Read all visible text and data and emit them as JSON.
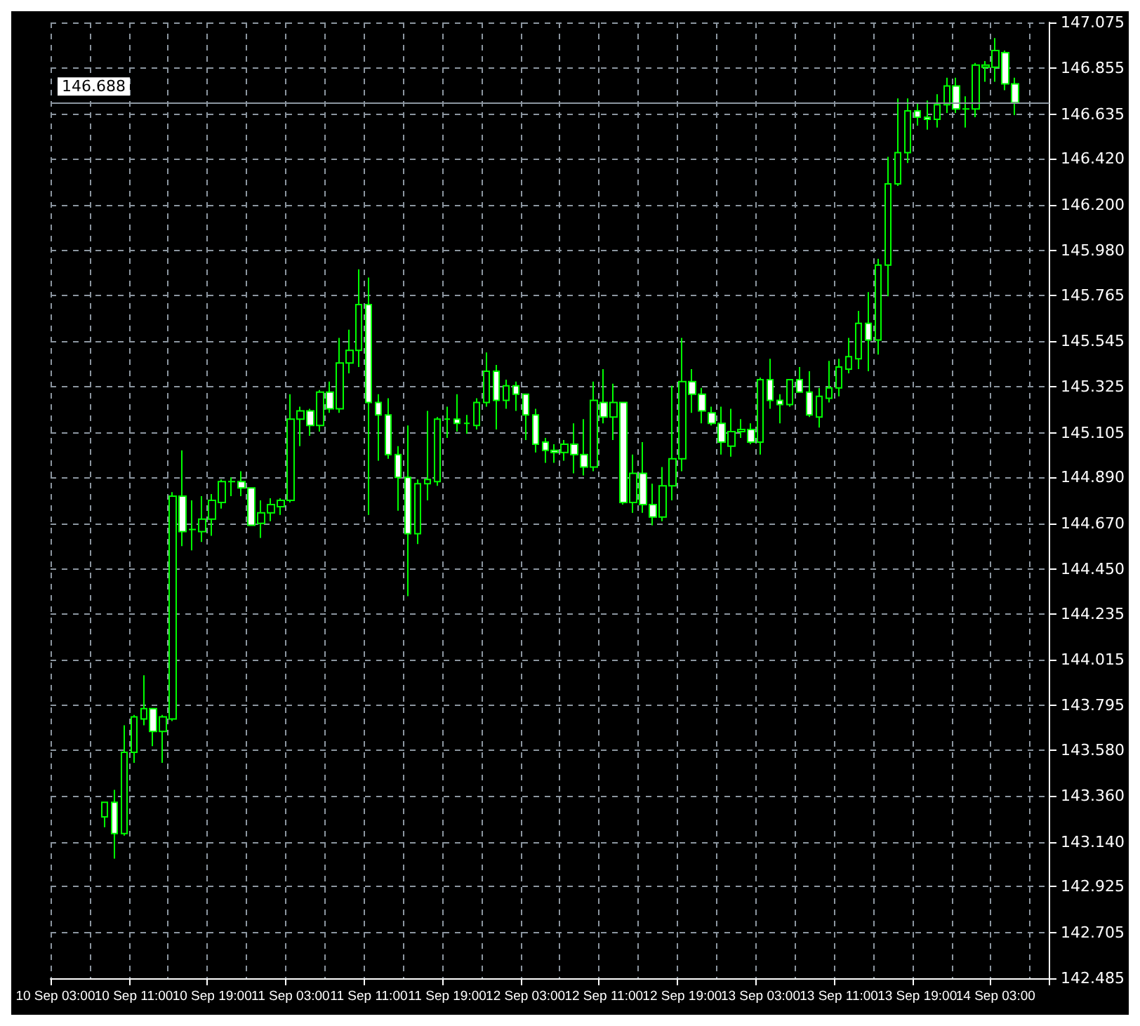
{
  "chart_data": {
    "type": "candlestick",
    "categories": [
      "10 Sep 03:00",
      null,
      null,
      null,
      null,
      null,
      null,
      null,
      "10 Sep 11:00",
      null,
      null,
      null,
      null,
      null,
      null,
      null,
      "10 Sep 19:00",
      null,
      null,
      null,
      null,
      null,
      null,
      null,
      "11 Sep 03:00",
      null,
      null,
      null,
      null,
      null,
      null,
      null,
      "11 Sep 11:00",
      null,
      null,
      null,
      null,
      null,
      null,
      null,
      "11 Sep 19:00",
      null,
      null,
      null,
      null,
      null,
      null,
      null,
      "12 Sep 03:00",
      null,
      null,
      null,
      null,
      null,
      null,
      null,
      "12 Sep 11:00",
      null,
      null,
      null,
      null,
      null,
      null,
      null,
      "12 Sep 19:00",
      null,
      null,
      null,
      null,
      null,
      null,
      null,
      "13 Sep 03:00",
      null,
      null,
      null,
      null,
      null,
      null,
      null,
      "13 Sep 11:00",
      null,
      null,
      null,
      null,
      null,
      null,
      null,
      "13 Sep 19:00",
      null,
      null,
      null,
      null,
      null,
      null,
      null,
      "14 Sep 03:00",
      null,
      null,
      null,
      null,
      null
    ],
    "ohlc": [
      null,
      null,
      null,
      null,
      null,
      [
        143.26,
        143.33,
        143.21,
        143.33
      ],
      [
        143.33,
        143.39,
        143.06,
        143.18
      ],
      [
        143.18,
        143.7,
        143.17,
        143.57
      ],
      [
        143.57,
        143.75,
        143.52,
        143.74
      ],
      [
        143.73,
        143.94,
        143.7,
        143.78
      ],
      [
        143.78,
        143.78,
        143.6,
        143.67
      ],
      [
        143.67,
        143.75,
        143.52,
        143.74
      ],
      [
        143.73,
        144.82,
        143.72,
        144.8
      ],
      [
        144.8,
        145.02,
        144.56,
        144.63
      ],
      [
        144.64,
        144.78,
        144.54,
        144.64
      ],
      [
        144.63,
        144.8,
        144.58,
        144.69
      ],
      [
        144.69,
        144.81,
        144.61,
        144.78
      ],
      [
        144.77,
        144.88,
        144.74,
        144.87
      ],
      [
        144.87,
        144.89,
        144.8,
        144.87
      ],
      [
        144.87,
        144.92,
        144.8,
        144.84
      ],
      [
        144.84,
        144.84,
        144.66,
        144.66
      ],
      [
        144.67,
        144.78,
        144.6,
        144.72
      ],
      [
        144.72,
        144.79,
        144.68,
        144.76
      ],
      [
        144.75,
        144.79,
        144.71,
        144.78
      ],
      [
        144.78,
        145.29,
        144.77,
        145.17
      ],
      [
        145.17,
        145.23,
        145.04,
        145.21
      ],
      [
        145.21,
        145.22,
        145.09,
        145.14
      ],
      [
        145.14,
        145.31,
        145.11,
        145.3
      ],
      [
        145.3,
        145.35,
        145.2,
        145.22
      ],
      [
        145.22,
        145.56,
        145.2,
        145.44
      ],
      [
        145.44,
        145.6,
        145.39,
        145.5
      ],
      [
        145.5,
        145.89,
        145.42,
        145.72
      ],
      [
        145.72,
        145.85,
        144.71,
        145.25
      ],
      [
        145.25,
        145.29,
        144.97,
        145.19
      ],
      [
        145.19,
        145.27,
        144.98,
        145.0
      ],
      [
        145.0,
        145.04,
        144.73,
        144.89
      ],
      [
        144.89,
        145.14,
        144.32,
        144.62
      ],
      [
        144.62,
        144.88,
        144.57,
        144.86
      ],
      [
        144.86,
        145.21,
        144.78,
        144.88
      ],
      [
        144.87,
        145.18,
        144.85,
        145.17
      ],
      [
        145.17,
        145.23,
        145.08,
        145.17
      ],
      [
        145.17,
        145.29,
        145.11,
        145.15
      ],
      [
        145.15,
        145.19,
        145.1,
        145.15
      ],
      [
        145.14,
        145.27,
        145.12,
        145.25
      ],
      [
        145.25,
        145.49,
        145.23,
        145.4
      ],
      [
        145.4,
        145.43,
        145.12,
        145.26
      ],
      [
        145.26,
        145.36,
        145.22,
        145.33
      ],
      [
        145.33,
        145.35,
        145.21,
        145.29
      ],
      [
        145.29,
        145.29,
        145.07,
        145.19
      ],
      [
        145.19,
        145.22,
        145.01,
        145.05
      ],
      [
        145.06,
        145.08,
        144.96,
        145.02
      ],
      [
        145.02,
        145.05,
        144.96,
        145.01
      ],
      [
        145.01,
        145.07,
        144.97,
        145.05
      ],
      [
        145.05,
        145.15,
        144.91,
        145.0
      ],
      [
        145.0,
        145.17,
        144.9,
        144.94
      ],
      [
        144.94,
        145.35,
        144.92,
        145.26
      ],
      [
        145.25,
        145.41,
        145.15,
        145.18
      ],
      [
        145.18,
        145.34,
        145.07,
        145.25
      ],
      [
        145.25,
        145.25,
        144.76,
        144.77
      ],
      [
        144.77,
        145.0,
        144.72,
        144.91
      ],
      [
        144.91,
        145.06,
        144.72,
        144.76
      ],
      [
        144.76,
        144.86,
        144.66,
        144.7
      ],
      [
        144.7,
        144.94,
        144.68,
        144.85
      ],
      [
        144.85,
        145.33,
        144.78,
        144.98
      ],
      [
        144.98,
        145.56,
        144.92,
        145.35
      ],
      [
        145.35,
        145.41,
        145.2,
        145.29
      ],
      [
        145.29,
        145.32,
        145.15,
        145.21
      ],
      [
        145.2,
        145.23,
        145.14,
        145.15
      ],
      [
        145.15,
        145.23,
        145.0,
        145.06
      ],
      [
        145.04,
        145.22,
        144.99,
        145.11
      ],
      [
        145.11,
        145.17,
        145.08,
        145.12
      ],
      [
        145.12,
        145.15,
        145.05,
        145.06
      ],
      [
        145.06,
        145.37,
        145.0,
        145.36
      ],
      [
        145.36,
        145.46,
        145.22,
        145.26
      ],
      [
        145.26,
        145.29,
        145.15,
        145.24
      ],
      [
        145.24,
        145.36,
        145.23,
        145.36
      ],
      [
        145.36,
        145.42,
        145.3,
        145.3
      ],
      [
        145.3,
        145.4,
        145.18,
        145.19
      ],
      [
        145.18,
        145.32,
        145.13,
        145.28
      ],
      [
        145.27,
        145.45,
        145.25,
        145.32
      ],
      [
        145.32,
        145.46,
        145.28,
        145.42
      ],
      [
        145.41,
        145.56,
        145.39,
        145.47
      ],
      [
        145.46,
        145.69,
        145.41,
        145.63
      ],
      [
        145.63,
        145.78,
        145.4,
        145.55
      ],
      [
        145.55,
        145.94,
        145.48,
        145.91
      ],
      [
        145.91,
        146.43,
        145.76,
        146.3
      ],
      [
        146.3,
        146.71,
        146.29,
        146.45
      ],
      [
        146.45,
        146.71,
        146.4,
        146.65
      ],
      [
        146.65,
        146.69,
        146.58,
        146.62
      ],
      [
        146.62,
        146.7,
        146.56,
        146.61
      ],
      [
        146.61,
        146.73,
        146.57,
        146.68
      ],
      [
        146.68,
        146.81,
        146.64,
        146.77
      ],
      [
        146.77,
        146.81,
        146.64,
        146.66
      ],
      [
        146.66,
        146.72,
        146.57,
        146.66
      ],
      [
        146.66,
        146.88,
        146.62,
        146.87
      ],
      [
        146.86,
        146.89,
        146.79,
        146.87
      ],
      [
        146.86,
        147.0,
        146.79,
        146.94
      ],
      [
        146.93,
        146.94,
        146.75,
        146.78
      ],
      [
        146.78,
        146.81,
        146.63,
        146.69
      ],
      null,
      null,
      null
    ],
    "color": "#00ff00",
    "ylim": [
      142.485,
      147.075
    ],
    "yticks": [
      142.485,
      142.705,
      142.925,
      {
        "value": 143.14,
        "label": "143.140"
      },
      {
        "value": 143.36,
        "label": "143.360"
      },
      {
        "value": 143.58,
        "label": "143.580"
      },
      143.795,
      144.015,
      144.235,
      {
        "value": 144.45,
        "label": "144.450"
      },
      {
        "value": 144.67,
        "label": "144.670"
      },
      {
        "value": 144.89,
        "label": "144.890"
      },
      145.105,
      145.325,
      145.545,
      145.765,
      {
        "value": 145.98,
        "label": "145.980"
      },
      {
        "value": 146.2,
        "label": "146.200"
      },
      {
        "value": 146.42,
        "label": "146.420"
      },
      146.635,
      146.855,
      147.075
    ],
    "grid": true,
    "ref_lines": [
      {
        "axis": "y",
        "value": 146.688,
        "label": "146.688",
        "color": "#8c96a0"
      }
    ]
  }
}
